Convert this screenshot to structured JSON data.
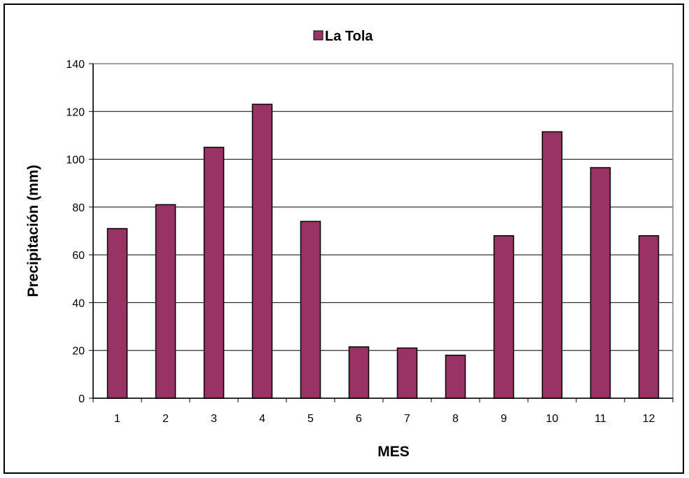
{
  "chart_data": {
    "type": "bar",
    "categories": [
      "1",
      "2",
      "3",
      "4",
      "5",
      "6",
      "7",
      "8",
      "9",
      "10",
      "11",
      "12"
    ],
    "series": [
      {
        "name": "La Tola",
        "values": [
          71,
          81,
          105,
          123,
          74,
          21.5,
          21,
          18,
          68,
          111.5,
          96.5,
          68
        ]
      }
    ],
    "xlabel": "MES",
    "ylabel": "Precipitación (mm)",
    "ylim": [
      0,
      140
    ],
    "yticks": [
      "0",
      "20",
      "40",
      "60",
      "80",
      "100",
      "120",
      "140"
    ],
    "grid": true,
    "legend_position": "top-center",
    "colors": {
      "bar": "#993366",
      "bar_border": "#000000",
      "plot_border": "#808080",
      "grid": "#000000"
    }
  }
}
